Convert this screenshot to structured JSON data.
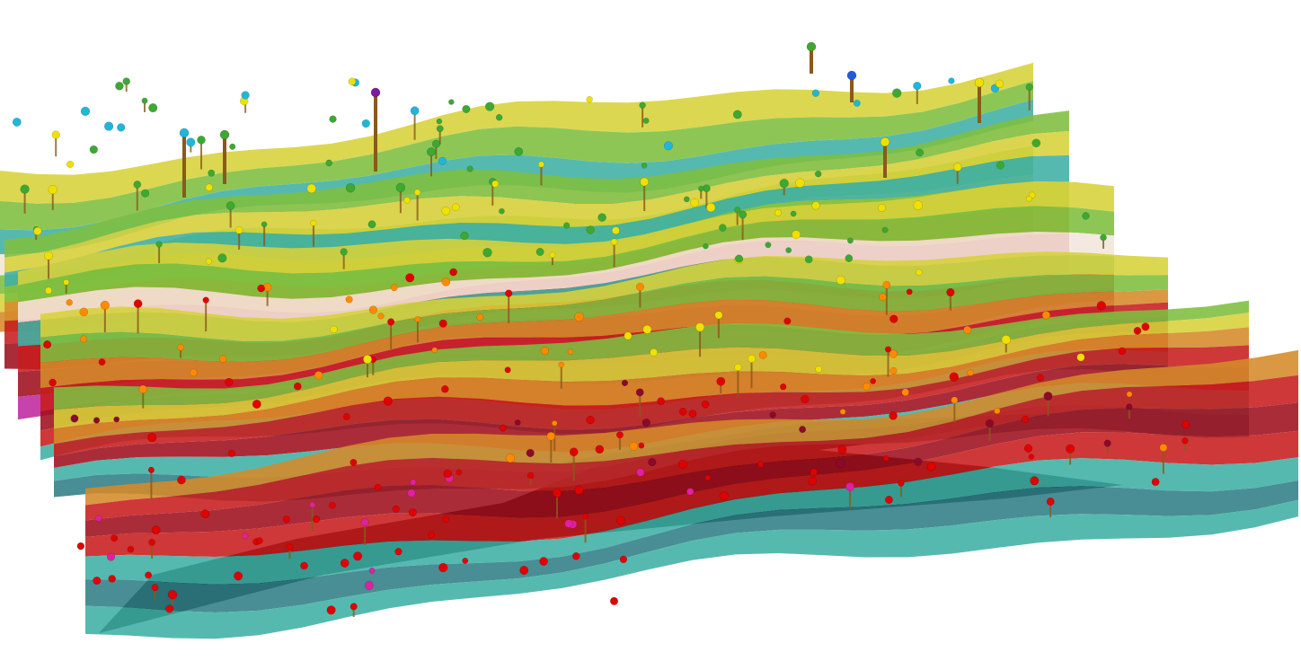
{
  "scene": {
    "kind": "3d-terrain-visualization",
    "background": "#ffffff",
    "text": []
  },
  "palette": {
    "deep": "#2f7f86",
    "teal": "#3fb0a4",
    "green": "#7fbf3f",
    "yellow": "#d8d23a",
    "orange": "#d68a2a",
    "red": "#c81d1d",
    "crimson": "#a0101e",
    "magenta": "#c02aa0",
    "peak": "#f2e6dc",
    "shadow": "#000000",
    "pole": "#8a5a1a"
  },
  "marker_colors": {
    "cyan": "#1fb7d9",
    "green": "#3da832",
    "yellow": "#f0e000",
    "orange": "#ff8a00",
    "red": "#e00000",
    "maroon": "#8a0a2a",
    "magenta": "#e020a0",
    "purple": "#7a1aa0",
    "blue": "#1e5ce0"
  }
}
